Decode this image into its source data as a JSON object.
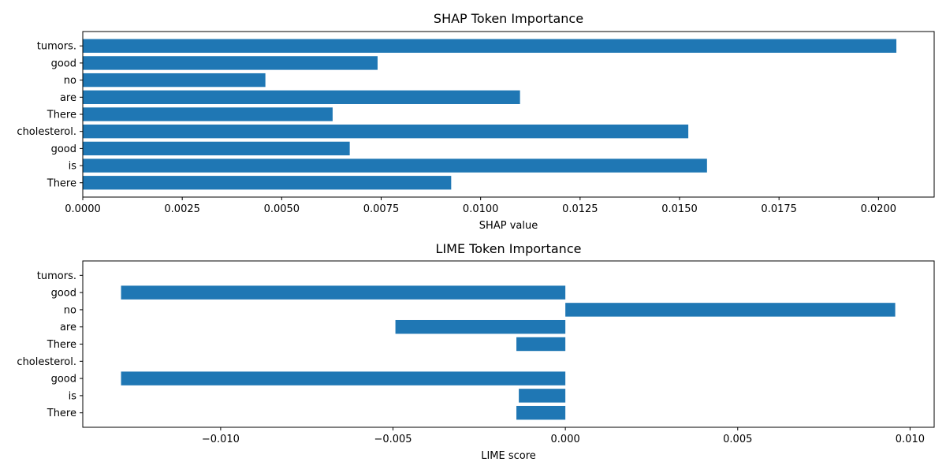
{
  "chart_data": [
    {
      "type": "bar",
      "orientation": "horizontal",
      "title": "SHAP Token Importance",
      "xlabel": "SHAP value",
      "ylabel": "",
      "categories": [
        "tumors.",
        "good",
        "no",
        "are",
        "There",
        "cholesterol.",
        "good",
        "is",
        "There"
      ],
      "values": [
        0.02045,
        0.00741,
        0.00459,
        0.01099,
        0.00628,
        0.01522,
        0.00671,
        0.01569,
        0.00926
      ],
      "xlim": [
        0,
        0.0214
      ],
      "xticks": [
        0,
        0.0025,
        0.005,
        0.0075,
        0.01,
        0.0125,
        0.015,
        0.0175,
        0.02
      ],
      "xtick_labels": [
        "0.0000",
        "0.0025",
        "0.0050",
        "0.0075",
        "0.0100",
        "0.0125",
        "0.0150",
        "0.0175",
        "0.0200"
      ],
      "bar_color": "#1f77b4",
      "grid": false
    },
    {
      "type": "bar",
      "orientation": "horizontal",
      "title": "LIME Token Importance",
      "xlabel": "LIME score",
      "ylabel": "",
      "categories": [
        "tumors.",
        "good",
        "no",
        "are",
        "There",
        "cholesterol.",
        "good",
        "is",
        "There"
      ],
      "values": [
        0,
        -0.01289,
        0.00957,
        -0.00493,
        -0.00142,
        0,
        -0.01289,
        -0.00135,
        -0.00142
      ],
      "xlim": [
        -0.014,
        0.0107
      ],
      "xticks": [
        -0.01,
        -0.005,
        0,
        0.005,
        0.01
      ],
      "xtick_labels": [
        "−0.010",
        "−0.005",
        "0.000",
        "0.005",
        "0.010"
      ],
      "bar_color": "#1f77b4",
      "grid": false
    }
  ]
}
